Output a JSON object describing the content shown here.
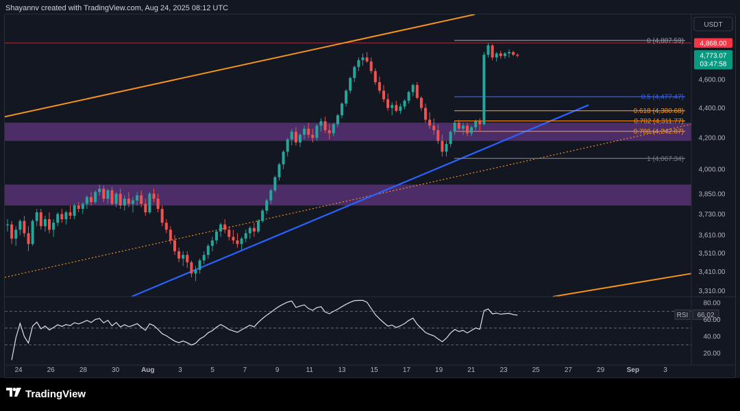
{
  "header": {
    "caption": "Shayannv created with TradingView.com, Aug 24, 2025 08:12 UTC"
  },
  "brand": {
    "logo_text": "TradingView"
  },
  "colors": {
    "background": "#131722",
    "candle_up": "#26a69a",
    "candle_down": "#ef5350",
    "zone": "#7b3fa0",
    "channel": "#f7931a",
    "trendline": "#2962ff",
    "rsi_line": "#e0e3eb",
    "price_tag": "#f23645",
    "last_price_tag": "#089981"
  },
  "chart_data": {
    "type": "candlestick",
    "symbol_quote": "USDT",
    "x_axis": {
      "tick_labels": [
        "24",
        "26",
        "28",
        "30",
        "Aug",
        "3",
        "5",
        "7",
        "9",
        "11",
        "13",
        "15",
        "17",
        "19",
        "21",
        "23",
        "25",
        "27",
        "29",
        "Sep",
        "3"
      ]
    },
    "y_axis": {
      "scale": "log",
      "range": [
        3280,
        5090
      ],
      "tick_labels": [
        "4,600.00",
        "4,400.00",
        "4,200.00",
        "4,000.00",
        "3,850.00",
        "3,730.00",
        "3,610.00",
        "3,510.00",
        "3,410.00",
        "3,310.00"
      ],
      "tick_values": [
        4600,
        4400,
        4200,
        4000,
        3850,
        3730,
        3610,
        3510,
        3410,
        3310
      ]
    },
    "price_tags": [
      {
        "label": "4,868.00",
        "value": 4868,
        "role": "high"
      },
      {
        "label": "4,773.07",
        "value": 4773.07,
        "sub": "03:47:58",
        "role": "last"
      }
    ],
    "quote_label": "USDT",
    "fibonacci": [
      {
        "label": "0 (4,887.59)",
        "value": 4887.59,
        "color": "#9598a1"
      },
      {
        "label": "0.5 (4,477.47)",
        "value": 4477.47,
        "color": "#2962ff"
      },
      {
        "label": "0.618 (4,380.68)",
        "value": 4380.68,
        "color": "#f7931a"
      },
      {
        "label": "0.702 (4,311.77)",
        "value": 4311.77,
        "color": "#f7931a"
      },
      {
        "label": "0.786 (4,242.87)",
        "value": 4242.87,
        "color": "#f7931a"
      },
      {
        "label": "1 (4,067.34)",
        "value": 4067.34,
        "color": "#787b86"
      }
    ],
    "zones": [
      {
        "top": 4300,
        "bottom": 4180
      },
      {
        "top": 3905,
        "bottom": 3780
      }
    ],
    "candles": {
      "description": "OHLC, one entry per 4h bar, oldest first",
      "ohlc": [
        [
          3665,
          3700,
          3630,
          3670
        ],
        [
          3670,
          3690,
          3560,
          3590
        ],
        [
          3590,
          3660,
          3550,
          3640
        ],
        [
          3640,
          3700,
          3610,
          3690
        ],
        [
          3690,
          3720,
          3600,
          3620
        ],
        [
          3620,
          3660,
          3520,
          3560
        ],
        [
          3560,
          3700,
          3550,
          3690
        ],
        [
          3690,
          3760,
          3660,
          3740
        ],
        [
          3740,
          3760,
          3640,
          3660
        ],
        [
          3660,
          3720,
          3630,
          3700
        ],
        [
          3700,
          3740,
          3620,
          3640
        ],
        [
          3640,
          3700,
          3600,
          3680
        ],
        [
          3680,
          3740,
          3660,
          3730
        ],
        [
          3730,
          3760,
          3680,
          3700
        ],
        [
          3700,
          3750,
          3670,
          3740
        ],
        [
          3740,
          3780,
          3700,
          3720
        ],
        [
          3720,
          3790,
          3700,
          3780
        ],
        [
          3780,
          3800,
          3740,
          3760
        ],
        [
          3760,
          3800,
          3730,
          3790
        ],
        [
          3790,
          3840,
          3760,
          3830
        ],
        [
          3830,
          3860,
          3780,
          3800
        ],
        [
          3800,
          3870,
          3790,
          3860
        ],
        [
          3860,
          3905,
          3840,
          3880
        ],
        [
          3880,
          3900,
          3800,
          3820
        ],
        [
          3820,
          3880,
          3790,
          3870
        ],
        [
          3870,
          3890,
          3780,
          3790
        ],
        [
          3790,
          3860,
          3770,
          3850
        ],
        [
          3850,
          3880,
          3760,
          3780
        ],
        [
          3780,
          3840,
          3750,
          3820
        ],
        [
          3820,
          3860,
          3770,
          3790
        ],
        [
          3790,
          3830,
          3740,
          3810
        ],
        [
          3810,
          3860,
          3780,
          3840
        ],
        [
          3840,
          3870,
          3770,
          3790
        ],
        [
          3790,
          3820,
          3720,
          3740
        ],
        [
          3740,
          3860,
          3730,
          3850
        ],
        [
          3850,
          3880,
          3800,
          3820
        ],
        [
          3820,
          3850,
          3740,
          3760
        ],
        [
          3760,
          3780,
          3660,
          3680
        ],
        [
          3680,
          3700,
          3620,
          3640
        ],
        [
          3640,
          3660,
          3560,
          3580
        ],
        [
          3580,
          3610,
          3500,
          3520
        ],
        [
          3520,
          3540,
          3460,
          3480
        ],
        [
          3480,
          3520,
          3440,
          3500
        ],
        [
          3500,
          3520,
          3430,
          3460
        ],
        [
          3460,
          3470,
          3380,
          3400
        ],
        [
          3400,
          3440,
          3360,
          3420
        ],
        [
          3420,
          3480,
          3400,
          3470
        ],
        [
          3470,
          3520,
          3450,
          3500
        ],
        [
          3500,
          3560,
          3480,
          3550
        ],
        [
          3550,
          3600,
          3520,
          3580
        ],
        [
          3580,
          3640,
          3560,
          3630
        ],
        [
          3630,
          3680,
          3600,
          3670
        ],
        [
          3670,
          3700,
          3620,
          3640
        ],
        [
          3640,
          3660,
          3580,
          3600
        ],
        [
          3600,
          3640,
          3560,
          3580
        ],
        [
          3580,
          3620,
          3540,
          3560
        ],
        [
          3560,
          3600,
          3530,
          3590
        ],
        [
          3590,
          3640,
          3570,
          3620
        ],
        [
          3620,
          3660,
          3590,
          3650
        ],
        [
          3650,
          3680,
          3600,
          3630
        ],
        [
          3630,
          3700,
          3620,
          3690
        ],
        [
          3690,
          3760,
          3680,
          3750
        ],
        [
          3750,
          3820,
          3730,
          3810
        ],
        [
          3810,
          3880,
          3790,
          3870
        ],
        [
          3870,
          3960,
          3860,
          3950
        ],
        [
          3950,
          4040,
          3930,
          4030
        ],
        [
          4030,
          4120,
          4000,
          4110
        ],
        [
          4110,
          4200,
          4080,
          4190
        ],
        [
          4190,
          4260,
          4150,
          4240
        ],
        [
          4240,
          4270,
          4150,
          4170
        ],
        [
          4170,
          4230,
          4140,
          4220
        ],
        [
          4220,
          4280,
          4190,
          4260
        ],
        [
          4260,
          4300,
          4200,
          4220
        ],
        [
          4220,
          4260,
          4170,
          4200
        ],
        [
          4200,
          4290,
          4180,
          4280
        ],
        [
          4280,
          4330,
          4240,
          4310
        ],
        [
          4310,
          4340,
          4230,
          4250
        ],
        [
          4250,
          4290,
          4190,
          4230
        ],
        [
          4230,
          4300,
          4210,
          4290
        ],
        [
          4290,
          4360,
          4270,
          4350
        ],
        [
          4350,
          4440,
          4330,
          4430
        ],
        [
          4430,
          4530,
          4410,
          4520
        ],
        [
          4520,
          4620,
          4500,
          4610
        ],
        [
          4610,
          4700,
          4580,
          4690
        ],
        [
          4690,
          4760,
          4660,
          4740
        ],
        [
          4740,
          4790,
          4700,
          4760
        ],
        [
          4760,
          4800,
          4720,
          4730
        ],
        [
          4730,
          4760,
          4640,
          4660
        ],
        [
          4660,
          4680,
          4560,
          4580
        ],
        [
          4580,
          4620,
          4500,
          4520
        ],
        [
          4520,
          4560,
          4440,
          4460
        ],
        [
          4460,
          4500,
          4380,
          4400
        ],
        [
          4400,
          4440,
          4350,
          4420
        ],
        [
          4420,
          4450,
          4370,
          4380
        ],
        [
          4380,
          4430,
          4360,
          4410
        ],
        [
          4410,
          4460,
          4390,
          4450
        ],
        [
          4450,
          4520,
          4430,
          4510
        ],
        [
          4510,
          4570,
          4480,
          4560
        ],
        [
          4560,
          4580,
          4460,
          4470
        ],
        [
          4470,
          4480,
          4380,
          4400
        ],
        [
          4400,
          4430,
          4300,
          4320
        ],
        [
          4320,
          4370,
          4260,
          4280
        ],
        [
          4280,
          4330,
          4220,
          4250
        ],
        [
          4250,
          4290,
          4160,
          4180
        ],
        [
          4180,
          4220,
          4080,
          4110
        ],
        [
          4110,
          4180,
          4080,
          4160
        ],
        [
          4160,
          4250,
          4140,
          4240
        ],
        [
          4240,
          4310,
          4220,
          4300
        ],
        [
          4300,
          4320,
          4240,
          4260
        ],
        [
          4260,
          4300,
          4220,
          4280
        ],
        [
          4280,
          4300,
          4210,
          4230
        ],
        [
          4230,
          4280,
          4210,
          4270
        ],
        [
          4270,
          4320,
          4250,
          4310
        ],
        [
          4310,
          4330,
          4240,
          4290
        ],
        [
          4290,
          4800,
          4280,
          4780
        ],
        [
          4780,
          4868,
          4760,
          4850
        ],
        [
          4850,
          4860,
          4740,
          4760
        ],
        [
          4760,
          4800,
          4730,
          4790
        ],
        [
          4790,
          4810,
          4750,
          4770
        ],
        [
          4770,
          4800,
          4750,
          4790
        ],
        [
          4790,
          4820,
          4760,
          4800
        ],
        [
          4800,
          4810,
          4770,
          4780
        ],
        [
          4780,
          4790,
          4760,
          4773.07
        ]
      ]
    },
    "rsi": {
      "label": "RSI",
      "value": 66.02,
      "range": [
        10,
        85
      ],
      "tick_labels": [
        "80.00",
        "60.00",
        "40.00",
        "20.00"
      ],
      "tick_values": [
        80,
        60,
        40,
        20
      ],
      "guide_levels": [
        70,
        50,
        30
      ]
    },
    "grid": false,
    "legend": "none"
  }
}
